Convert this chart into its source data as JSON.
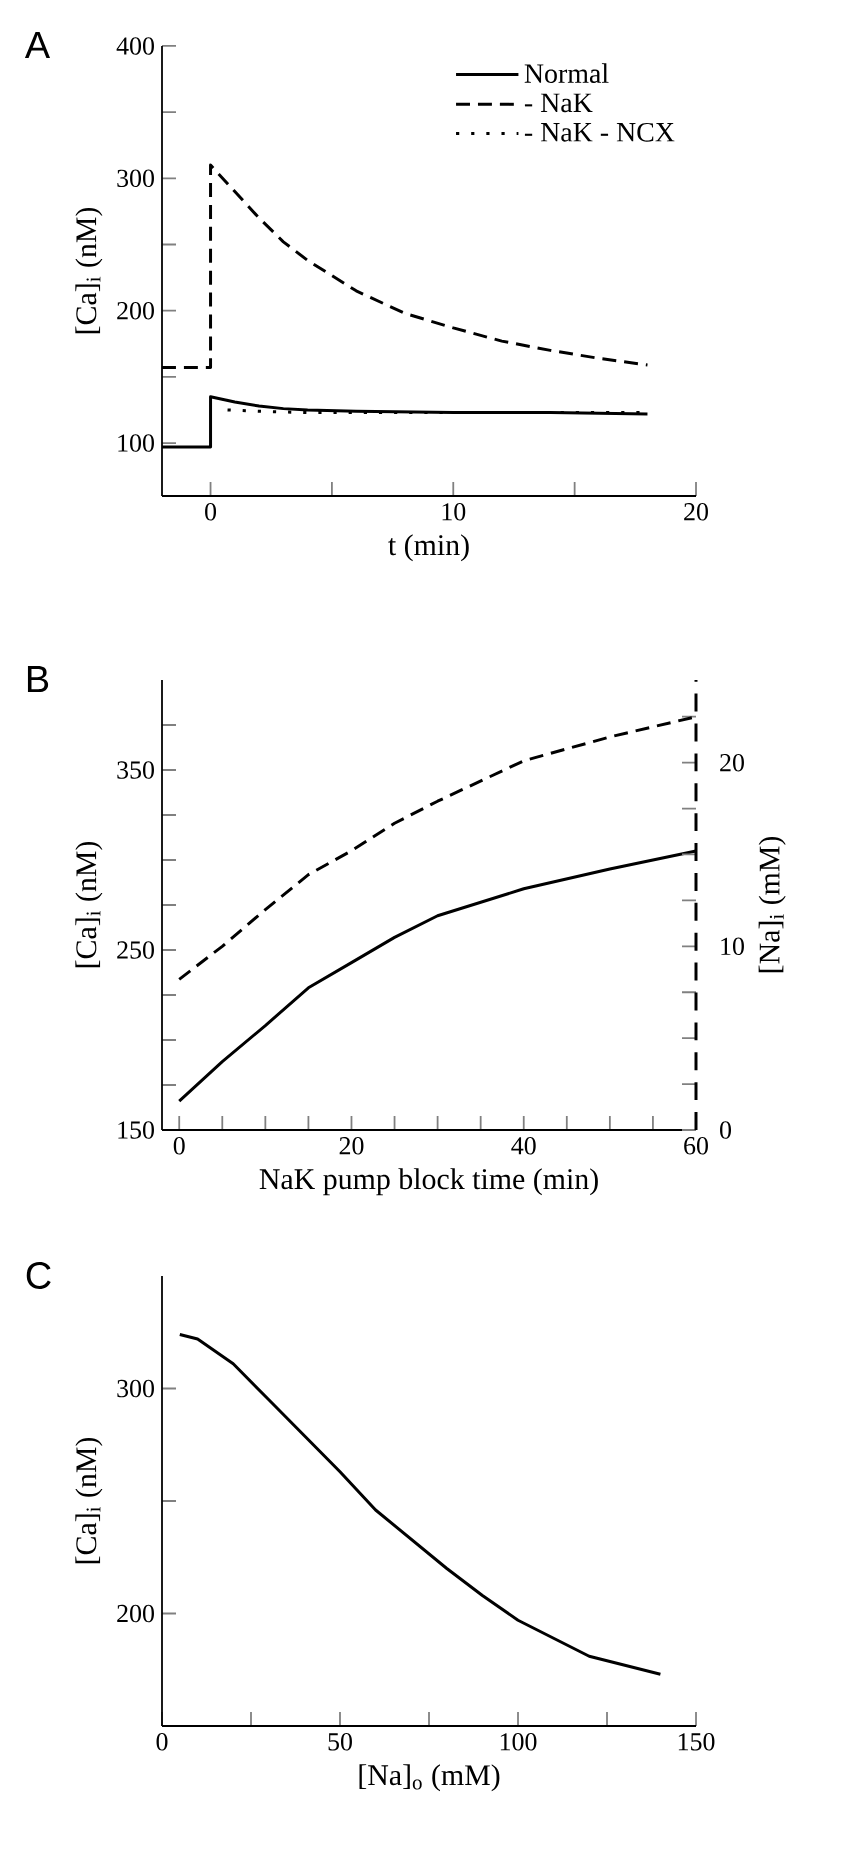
{
  "chart_data": [
    {
      "type": "line",
      "title": "A",
      "xlabel": "t (min)",
      "ylabel": "[Ca]$_{i}$ (nM)",
      "xlim": [
        -2,
        20
      ],
      "ylim": [
        60,
        400
      ],
      "xticks": [
        0,
        {
          "value": 5,
          "label": null
        },
        10,
        {
          "value": 15,
          "label": null
        },
        20
      ],
      "yticks": [
        100,
        {
          "value": 150,
          "label": null
        },
        200,
        {
          "value": 250,
          "label": null
        },
        300,
        {
          "value": 350,
          "label": null
        },
        400
      ],
      "legend": "top right",
      "series": [
        {
          "name": "Normal",
          "color": "#000000",
          "line_style": "solid",
          "x": [
            -2,
            0,
            0,
            1,
            2,
            3,
            4,
            6,
            10,
            14,
            18
          ],
          "values": [
            97,
            97,
            135,
            131,
            128,
            126,
            125,
            124,
            123,
            123,
            122
          ]
        },
        {
          "name": "- NaK",
          "color": "#000000",
          "line_style": "dashed",
          "x": [
            -2,
            0,
            0,
            1,
            2,
            3,
            4,
            6,
            8,
            10,
            12,
            14,
            16,
            18
          ],
          "values": [
            157,
            157,
            310,
            290,
            270,
            252,
            238,
            215,
            198,
            187,
            177,
            170,
            164,
            159
          ]
        },
        {
          "name": "- NaK - NCX",
          "color": "#000000",
          "line_style": "dotted",
          "x": [
            0.7,
            2,
            4,
            10,
            18
          ],
          "values": [
            125,
            124,
            123,
            123,
            123
          ]
        }
      ]
    },
    {
      "type": "line",
      "title": "B",
      "xlabel": "NaK pump block time (min)",
      "ylabel": "[Ca]$_{i}$ (nM)",
      "y2label": "[Na]$_{i}$ (mM)",
      "xlim": [
        -2,
        60
      ],
      "ylim": [
        150,
        400
      ],
      "y2lim": [
        0,
        24.5
      ],
      "xticks": [
        0,
        {
          "value": 5,
          "label": null
        },
        {
          "value": 10,
          "label": null
        },
        {
          "value": 15,
          "label": null
        },
        20,
        {
          "value": 25,
          "label": null
        },
        {
          "value": 30,
          "label": null
        },
        {
          "value": 35,
          "label": null
        },
        40,
        {
          "value": 45,
          "label": null
        },
        {
          "value": 50,
          "label": null
        },
        {
          "value": 55,
          "label": null
        },
        60
      ],
      "yticks": [
        150,
        {
          "value": 175,
          "label": null
        },
        {
          "value": 200,
          "label": null
        },
        {
          "value": 225,
          "label": null
        },
        250,
        {
          "value": 275,
          "label": null
        },
        {
          "value": 300,
          "label": null
        },
        {
          "value": 325,
          "label": null
        },
        350,
        {
          "value": 375,
          "label": null
        }
      ],
      "y2ticks": [
        0,
        {
          "value": 2.5,
          "label": null
        },
        {
          "value": 5,
          "label": null
        },
        {
          "value": 7.5,
          "label": null
        },
        10,
        {
          "value": 12.5,
          "label": null
        },
        {
          "value": 15,
          "label": null
        },
        {
          "value": 17.5,
          "label": null
        },
        20,
        {
          "value": 22.5,
          "label": null
        }
      ],
      "series": [
        {
          "color": "#000000",
          "line_style": "solid",
          "x": [
            0,
            5,
            10,
            15,
            20,
            25,
            30,
            40,
            50,
            60
          ],
          "values": [
            166,
            188,
            208,
            229,
            243,
            257,
            269,
            284,
            295,
            305
          ]
        },
        {
          "color": "#000000",
          "line_style": "dashed",
          "axis": "y2",
          "x": [
            0,
            5,
            10,
            15,
            20,
            25,
            30,
            40,
            50,
            60
          ],
          "values": [
            8.2,
            10.0,
            12.0,
            13.9,
            15.2,
            16.7,
            17.9,
            20.1,
            21.4,
            22.5
          ]
        }
      ]
    },
    {
      "type": "line",
      "title": "C",
      "xlabel": "[Na]$_{o}$ (mM)",
      "ylabel": "[Ca]$_{i}$ (nM)",
      "xlim": [
        0,
        150
      ],
      "ylim": [
        150,
        350
      ],
      "xticks": [
        0,
        {
          "value": 25,
          "label": null
        },
        50,
        {
          "value": 75,
          "label": null
        },
        100,
        {
          "value": 125,
          "label": null
        },
        150
      ],
      "yticks": [
        200,
        {
          "value": 250,
          "label": null
        },
        300
      ],
      "series": [
        {
          "color": "#000000",
          "line_style": "solid",
          "x": [
            5,
            10,
            20,
            30,
            40,
            50,
            60,
            70,
            80,
            90,
            100,
            110,
            120,
            130,
            140
          ],
          "values": [
            324,
            322,
            311,
            295,
            279,
            263,
            246,
            233,
            220,
            208,
            197,
            189,
            181,
            177,
            173
          ]
        }
      ]
    }
  ]
}
